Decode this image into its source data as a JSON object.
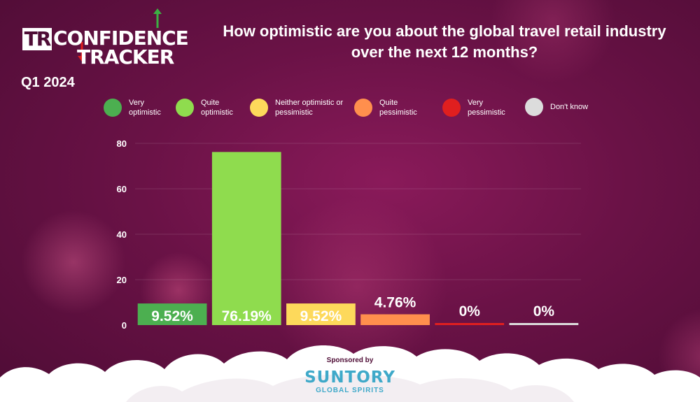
{
  "logo": {
    "tr": "TR",
    "line1": "CONFIDENCE",
    "line2": "TRACKER"
  },
  "period": "Q1 2024",
  "title": "How optimistic are you about the global travel retail industry over the next 12 months?",
  "sponsor": {
    "label": "Sponsored by",
    "name": "SUNTORY",
    "sub": "GLOBAL SPIRITS"
  },
  "colors": {
    "background": "#6a1246",
    "very_optimistic": "#4caf50",
    "quite_optimistic": "#8fdc4e",
    "neither": "#fdd95b",
    "quite_pessimistic": "#ff8f4d",
    "very_pessimistic": "#e01f1f",
    "dont_know": "#dcdcdc",
    "accent_green": "#3cb043",
    "accent_red": "#e01f1f"
  },
  "legend": [
    {
      "label": "Very optimistic",
      "color": "#4caf50"
    },
    {
      "label": "Quite optimistic",
      "color": "#8fdc4e"
    },
    {
      "label": "Neither optimistic or pessimistic",
      "color": "#fdd95b"
    },
    {
      "label": "Quite pessimistic",
      "color": "#ff8f4d"
    },
    {
      "label": "Very pessimistic",
      "color": "#e01f1f"
    },
    {
      "label": "Don't know",
      "color": "#dcdcdc"
    }
  ],
  "chart_data": {
    "type": "bar",
    "categories": [
      "Very optimistic",
      "Quite optimistic",
      "Neither optimistic or pessimistic",
      "Quite pessimistic",
      "Very pessimistic",
      "Don't know"
    ],
    "values": [
      9.52,
      76.19,
      9.52,
      4.76,
      0,
      0
    ],
    "data_labels": [
      "9.52%",
      "76.19%",
      "9.52%",
      "4.76%",
      "0%",
      "0%"
    ],
    "colors": [
      "#4caf50",
      "#8fdc4e",
      "#fdd95b",
      "#ff8f4d",
      "#e01f1f",
      "#dcdcdc"
    ],
    "y_ticks": [
      0,
      20,
      40,
      60,
      80
    ],
    "ylim": [
      0,
      80
    ],
    "grid": true,
    "legend_position": "top",
    "xlabel": "",
    "ylabel": ""
  }
}
